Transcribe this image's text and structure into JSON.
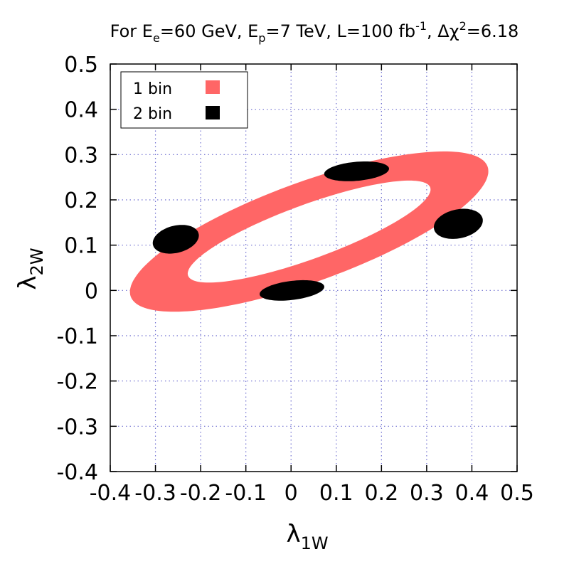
{
  "chart_data": {
    "type": "area",
    "title": {
      "prefix": "For E",
      "e_sub": "e",
      "e_val": "=60 GeV, E",
      "p_sub": "p",
      "p_val": "=7 TeV, L=100 fb",
      "l_sup": "-1",
      "sep": ", Δχ",
      "chi_sup": "2",
      "tail": "=6.18"
    },
    "xlabel": {
      "main": "λ",
      "sub": "1W"
    },
    "ylabel": {
      "main": "λ",
      "sub": "2W"
    },
    "xlim": [
      -0.4,
      0.5
    ],
    "ylim": [
      -0.4,
      0.5
    ],
    "xticks": [
      "-0.4",
      "-0.3",
      "-0.2",
      "-0.1",
      "0",
      "0.1",
      "0.2",
      "0.3",
      "0.4",
      "0.5"
    ],
    "xtick_values": [
      -0.4,
      -0.3,
      -0.2,
      -0.1,
      0,
      0.1,
      0.2,
      0.3,
      0.4,
      0.5
    ],
    "yticks": [
      "-0.4",
      "-0.3",
      "-0.2",
      "-0.1",
      "0",
      "0.1",
      "0.2",
      "0.3",
      "0.4",
      "0.5"
    ],
    "ytick_values": [
      -0.4,
      -0.3,
      -0.2,
      -0.1,
      0,
      0.1,
      0.2,
      0.3,
      0.4,
      0.5
    ],
    "grid": true,
    "legend_position": "top-left",
    "series": [
      {
        "name": "1 bin",
        "color": "#ff6666",
        "shape": "elliptical-ring",
        "center": [
          0.04,
          0.13
        ],
        "outer_semi_axes": [
          0.42,
          0.11
        ],
        "inner_semi_axes": [
          0.285,
          0.06
        ],
        "angle_deg": 20
      },
      {
        "name": "2 bin",
        "color": "#000000",
        "shape": "blobs",
        "blobs": [
          {
            "center": [
              -0.255,
              0.113
            ],
            "rx": 0.052,
            "ry": 0.03,
            "angle_deg": 14
          },
          {
            "center": [
              0.145,
              0.263
            ],
            "rx": 0.072,
            "ry": 0.021,
            "angle_deg": 5
          },
          {
            "center": [
              0.37,
              0.147
            ],
            "rx": 0.055,
            "ry": 0.032,
            "angle_deg": 12
          },
          {
            "center": [
              0.002,
              0.0
            ],
            "rx": 0.072,
            "ry": 0.021,
            "angle_deg": 7
          }
        ]
      }
    ]
  }
}
